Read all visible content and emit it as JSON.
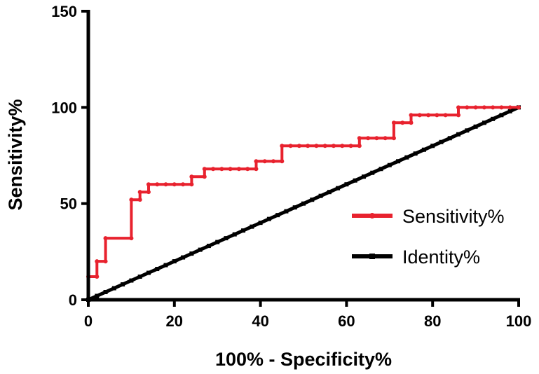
{
  "chart_data": {
    "type": "line",
    "xlabel": "100% - Specificity%",
    "ylabel": "Sensitivity%",
    "xlim": [
      0,
      100
    ],
    "ylim": [
      0,
      150
    ],
    "x_ticks": [
      "0",
      "20",
      "40",
      "60",
      "80",
      "100"
    ],
    "y_ticks": [
      "0",
      "50",
      "100",
      "150"
    ],
    "legend_position": "right",
    "grid": false,
    "series": [
      {
        "name": "Sensitivity%",
        "color": "#e8222e",
        "marker": "circle",
        "step": true,
        "x": [
          0,
          0,
          2,
          2,
          4,
          4,
          10,
          10,
          12,
          12,
          14,
          14,
          16,
          18,
          20,
          22,
          24,
          24,
          27,
          27,
          29,
          31,
          33,
          35,
          37,
          39,
          39,
          41,
          43,
          45,
          45,
          47,
          49,
          51,
          53,
          55,
          57,
          59,
          61,
          63,
          63,
          65,
          67,
          69,
          71,
          71,
          73,
          75,
          75,
          77,
          79,
          81,
          83,
          86,
          86,
          88,
          90,
          92,
          94,
          96,
          98,
          100
        ],
        "y": [
          0,
          12,
          12,
          20,
          20,
          32,
          32,
          52,
          52,
          56,
          56,
          60,
          60,
          60,
          60,
          60,
          60,
          64,
          64,
          68,
          68,
          68,
          68,
          68,
          68,
          68,
          72,
          72,
          72,
          72,
          80,
          80,
          80,
          80,
          80,
          80,
          80,
          80,
          80,
          80,
          84,
          84,
          84,
          84,
          84,
          92,
          92,
          92,
          96,
          96,
          96,
          96,
          96,
          96,
          100,
          100,
          100,
          100,
          100,
          100,
          100,
          100
        ]
      },
      {
        "name": "Identity%",
        "color": "#000000",
        "marker": "square",
        "step": false,
        "x": [
          0,
          2,
          4,
          6,
          8,
          10,
          12,
          14,
          16,
          18,
          20,
          22,
          24,
          26,
          28,
          30,
          32,
          34,
          36,
          38,
          40,
          42,
          44,
          46,
          48,
          50,
          52,
          54,
          56,
          58,
          60,
          62,
          64,
          66,
          68,
          70,
          72,
          74,
          76,
          78,
          80,
          82,
          84,
          86,
          88,
          90,
          92,
          94,
          96,
          98,
          100
        ],
        "y": [
          0,
          2,
          4,
          6,
          8,
          10,
          12,
          14,
          16,
          18,
          20,
          22,
          24,
          26,
          28,
          30,
          32,
          34,
          36,
          38,
          40,
          42,
          44,
          46,
          48,
          50,
          52,
          54,
          56,
          58,
          60,
          62,
          64,
          66,
          68,
          70,
          72,
          74,
          76,
          78,
          80,
          82,
          84,
          86,
          88,
          90,
          92,
          94,
          96,
          98,
          100
        ]
      }
    ]
  }
}
